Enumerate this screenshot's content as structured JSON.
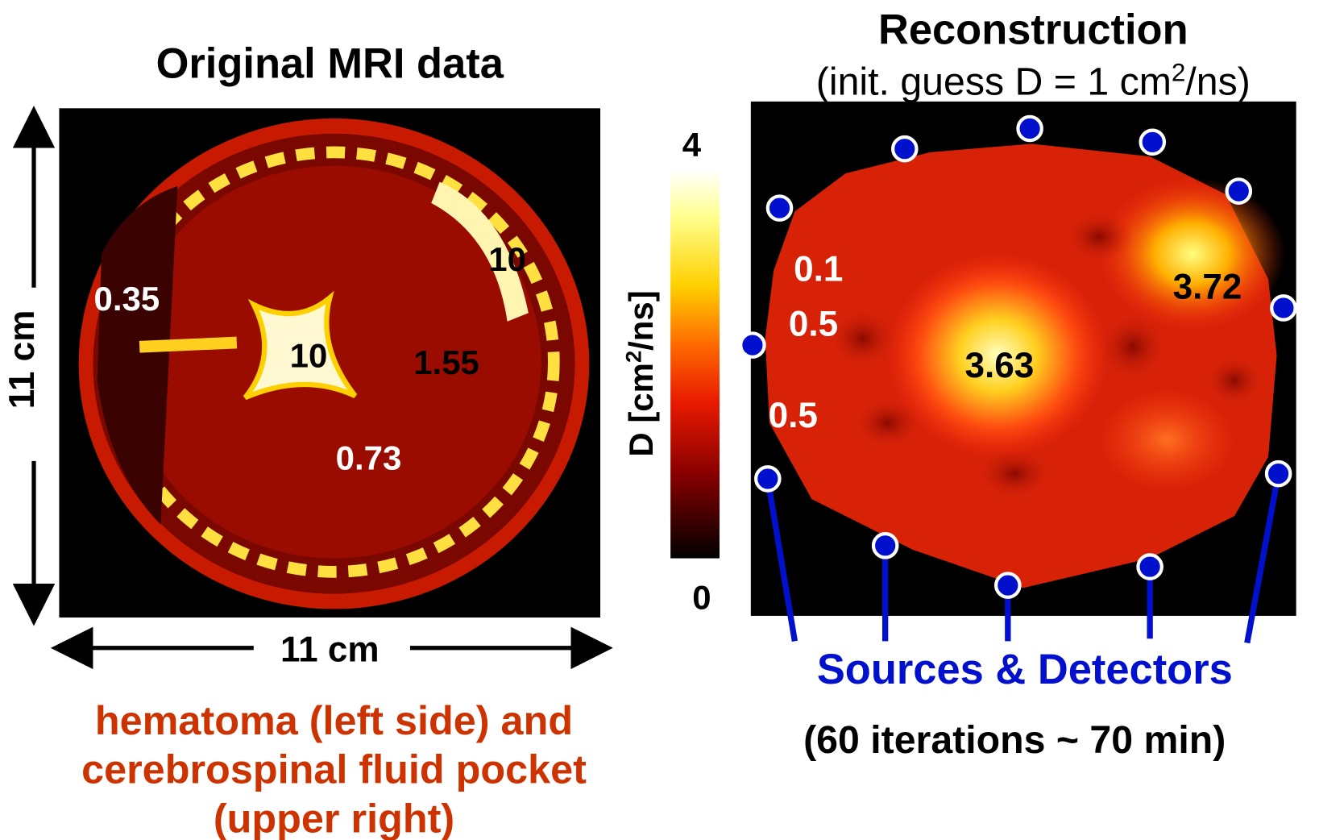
{
  "left_panel": {
    "title": "Original MRI data",
    "labels": [
      "0.35",
      "10",
      "10",
      "1.55",
      "0.73"
    ],
    "width_label": "11 cm",
    "height_label": "11 cm",
    "caption": [
      "hematoma (left side) and",
      "cerebrospinal fluid pocket",
      "(upper right)"
    ]
  },
  "colorbar": {
    "label": [
      "D [cm",
      "2",
      "/ns]"
    ],
    "max_label": "4",
    "min_label": "0"
  },
  "right_panel": {
    "title": "Reconstruction",
    "subtitle": [
      "(init.  guess D = 1 cm",
      "2",
      "/ns)"
    ],
    "labels": [
      "0.1",
      "0.5",
      "0.5",
      "3.63",
      "3.72"
    ],
    "legend": "Sources & Detectors",
    "caption": "(60 iterations ~ 70 min)"
  }
}
